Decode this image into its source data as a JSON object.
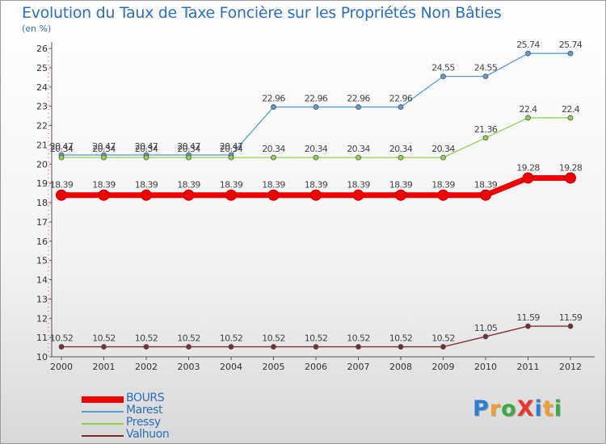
{
  "header": {
    "title": "Evolution du Taux de Taxe Foncière sur les Propriétés Non Bâties",
    "unit": "(en %)"
  },
  "logo": {
    "text": "ProXiti",
    "letters": [
      "P",
      "r",
      "o",
      "X",
      "i",
      "t",
      "i"
    ],
    "letter_colors": [
      "#2b7fd6",
      "#f0a030",
      "#3daa46",
      "#e8382e",
      "#2b7fd6",
      "#f0a030",
      "#3daa46"
    ]
  },
  "chart_data": {
    "type": "line",
    "title": "Evolution du Taux de Taxe Foncière sur les Propriétés Non Bâties",
    "ylabel": "(en %)",
    "xlabel": "",
    "x": [
      "2000",
      "2001",
      "2002",
      "2003",
      "2004",
      "2005",
      "2006",
      "2007",
      "2008",
      "2009",
      "2010",
      "2011",
      "2012"
    ],
    "ylim": [
      10,
      26
    ],
    "yticks": [
      "10",
      "11",
      "12",
      "13",
      "14",
      "15",
      "16",
      "17",
      "18",
      "19",
      "20",
      "21",
      "22",
      "23",
      "24",
      "25",
      "26"
    ],
    "grid": false,
    "legend_position": "bottom-left",
    "series": [
      {
        "name": "BOURS",
        "color": "#f00000",
        "emphasis": true,
        "values": [
          18.39,
          18.39,
          18.39,
          18.39,
          18.39,
          18.39,
          18.39,
          18.39,
          18.39,
          18.39,
          18.39,
          19.28,
          19.28
        ],
        "labels": [
          "18.39",
          "18.39",
          "18.39",
          "18.39",
          "18.39",
          "18.39",
          "18.39",
          "18.39",
          "18.39",
          "18.39",
          "18.39",
          "19.28",
          "19.28"
        ]
      },
      {
        "name": "Marest",
        "color": "#5b9bd5",
        "emphasis": false,
        "values": [
          20.47,
          20.47,
          20.47,
          20.47,
          20.47,
          22.96,
          22.96,
          22.96,
          22.96,
          24.55,
          24.55,
          25.74,
          25.74
        ],
        "labels": [
          "20.47",
          "20.47",
          "20.47",
          "20.47",
          "20.47",
          "22.96",
          "22.96",
          "22.96",
          "22.96",
          "24.55",
          "24.55",
          "25.74",
          "25.74"
        ]
      },
      {
        "name": "Pressy",
        "color": "#92d050",
        "emphasis": false,
        "values": [
          20.34,
          20.34,
          20.34,
          20.34,
          20.34,
          20.34,
          20.34,
          20.34,
          20.34,
          20.34,
          21.36,
          22.4,
          22.4
        ],
        "labels": [
          "20.34",
          "20.34",
          "20.34",
          "20.34",
          "20.34",
          "20.34",
          "20.34",
          "20.34",
          "20.34",
          "20.34",
          "21.36",
          "22.4",
          "22.4"
        ]
      },
      {
        "name": "Valhuon",
        "color": "#7b2c2c",
        "emphasis": false,
        "values": [
          10.52,
          10.52,
          10.52,
          10.52,
          10.52,
          10.52,
          10.52,
          10.52,
          10.52,
          10.52,
          11.05,
          11.59,
          11.59
        ],
        "labels": [
          "10.52",
          "10.52",
          "10.52",
          "10.52",
          "10.52",
          "10.52",
          "10.52",
          "10.52",
          "10.52",
          "10.52",
          "11.05",
          "11.59",
          "11.59"
        ]
      }
    ]
  }
}
